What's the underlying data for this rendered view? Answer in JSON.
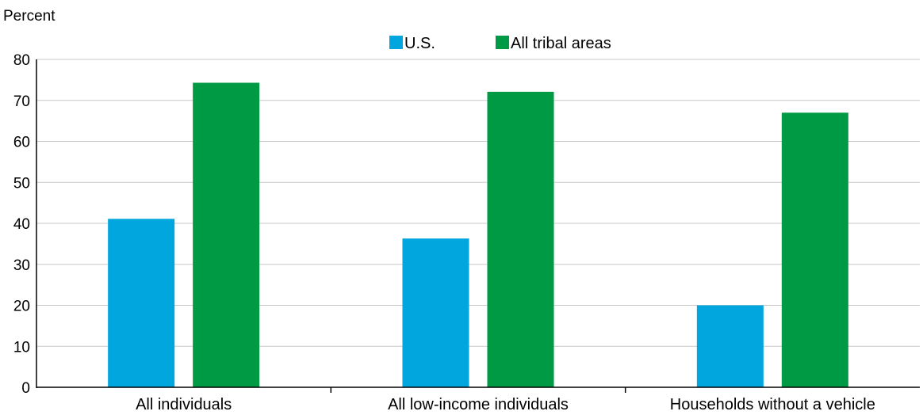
{
  "chart_data": {
    "type": "bar",
    "ylabel": "Percent",
    "xlabel": "",
    "ylim": [
      0,
      80
    ],
    "yticks": [
      0,
      10,
      20,
      30,
      40,
      50,
      60,
      70,
      80
    ],
    "grid": true,
    "legend_position": "top-center",
    "categories": [
      "All individuals",
      "All low-income individuals",
      "Households without a vehicle"
    ],
    "series": [
      {
        "name": "U.S.",
        "color": "#00a6dd",
        "values": [
          41.1,
          36.3,
          20.0
        ]
      },
      {
        "name": "All tribal areas",
        "color": "#009a44",
        "values": [
          74.3,
          72.1,
          67.0
        ]
      }
    ]
  }
}
